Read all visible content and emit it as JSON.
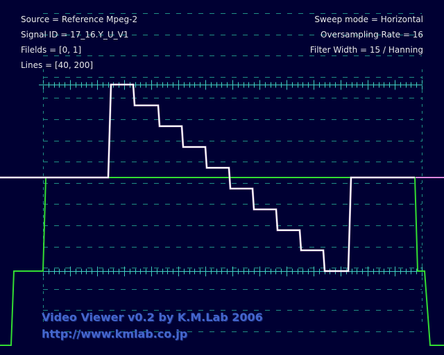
{
  "info_left": {
    "source": "Source = Reference Mpeg-2",
    "signal_id": "Signal ID = 17_16.Y_U_V1",
    "fields": "Filelds = [0, 1]",
    "lines": "Lines = [40, 200]"
  },
  "info_right": {
    "sweep_mode": "Sweep mode = Horizontal",
    "oversampling": "Oversampling Rate = 16",
    "filter_width": "Filter Width = 15 / Hanning"
  },
  "banner": {
    "title": "Video Viewer v0.2 by K.M.Lab 2006",
    "url": "http://www.kmlab.co.jp"
  },
  "colors": {
    "background": "#000033",
    "graticule": "#1f8f86",
    "graticule_solid": "#40d0c0",
    "trace_luma": "#ffffff",
    "trace_green": "#33dd33",
    "trace_violet": "#dd88dd",
    "banner_text": "#4466cc"
  }
}
